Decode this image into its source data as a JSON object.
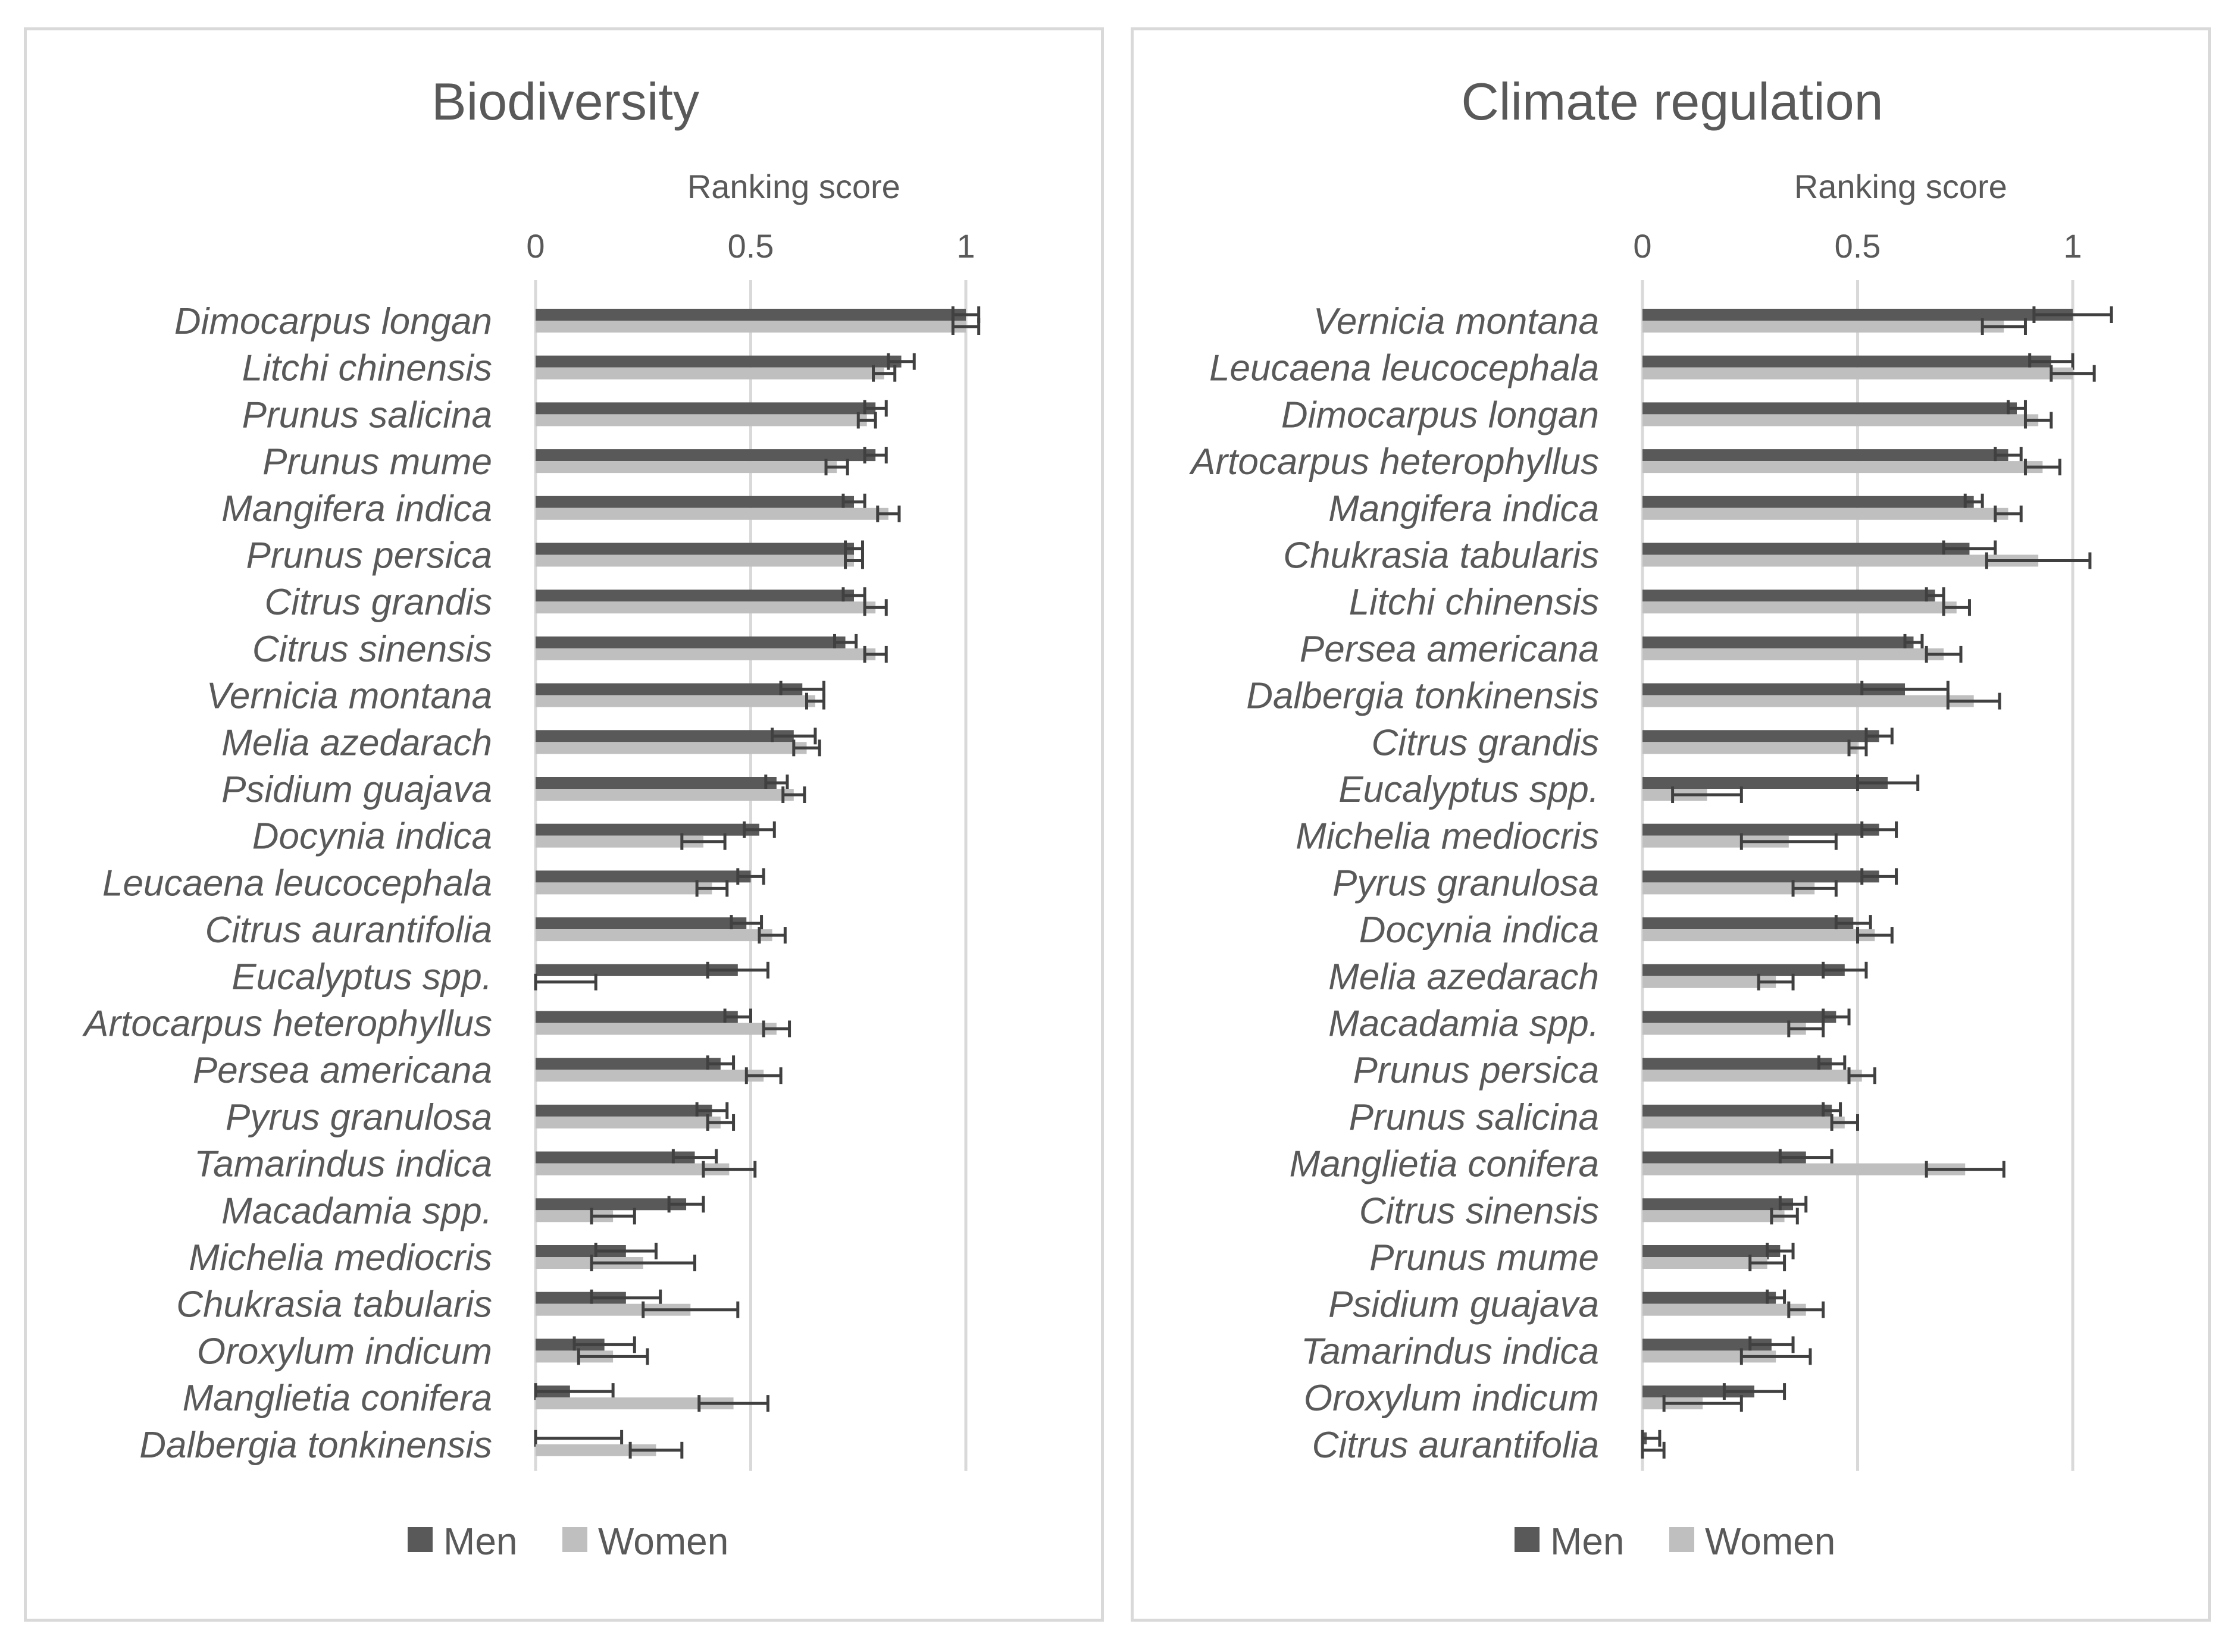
{
  "colors": {
    "men": "#595959",
    "women": "#bfbfbf",
    "err": "#404040",
    "grid": "#d9d9d9",
    "text": "#595959"
  },
  "chart_data": [
    {
      "type": "bar",
      "orientation": "horizontal",
      "title": "Biodiversity",
      "xlabel": "Ranking score",
      "xlim": [
        0,
        1.1
      ],
      "ticks": [
        0,
        0.5,
        1
      ],
      "tick_labels": [
        "0",
        "0.5",
        "1"
      ],
      "legend": "bottom",
      "categories": [
        "Dimocarpus longan",
        "Litchi chinensis",
        "Prunus salicina",
        "Prunus mume",
        "Mangifera indica",
        "Prunus persica",
        "Citrus grandis",
        "Citrus sinensis",
        "Vernicia montana",
        "Melia azedarach",
        "Psidium guajava",
        "Docynia indica",
        "Leucaena leucocephala",
        "Citrus aurantifolia",
        "Eucalyptus spp.",
        "Artocarpus heterophyllus",
        "Persea americana",
        "Pyrus granulosa",
        "Tamarindus indica",
        "Macadamia spp.",
        "Michelia mediocris",
        "Chukrasia tabularis",
        "Oroxylum indicum",
        "Manglietia conifera",
        "Dalbergia tonkinensis"
      ],
      "series": [
        {
          "name": "Men",
          "values": [
            1.0,
            0.85,
            0.79,
            0.79,
            0.74,
            0.74,
            0.74,
            0.72,
            0.62,
            0.6,
            0.56,
            0.52,
            0.5,
            0.49,
            0.47,
            0.47,
            0.43,
            0.41,
            0.37,
            0.35,
            0.21,
            0.21,
            0.16,
            0.08,
            0.0
          ],
          "errors": [
            0.03,
            0.03,
            0.025,
            0.025,
            0.025,
            0.02,
            0.025,
            0.025,
            0.05,
            0.05,
            0.025,
            0.035,
            0.03,
            0.035,
            0.07,
            0.03,
            0.03,
            0.035,
            0.05,
            0.04,
            0.07,
            0.08,
            0.07,
            0.1,
            0.2
          ]
        },
        {
          "name": "Women",
          "values": [
            1.0,
            0.81,
            0.77,
            0.7,
            0.82,
            0.74,
            0.79,
            0.79,
            0.65,
            0.63,
            0.6,
            0.39,
            0.41,
            0.55,
            0.0,
            0.56,
            0.53,
            0.43,
            0.45,
            0.18,
            0.25,
            0.36,
            0.18,
            0.46,
            0.28
          ],
          "errors": [
            0.03,
            0.025,
            0.02,
            0.025,
            0.025,
            0.02,
            0.025,
            0.025,
            0.02,
            0.03,
            0.025,
            0.05,
            0.035,
            0.03,
            0.14,
            0.03,
            0.04,
            0.03,
            0.06,
            0.05,
            0.12,
            0.11,
            0.08,
            0.08,
            0.06
          ]
        }
      ]
    },
    {
      "type": "bar",
      "orientation": "horizontal",
      "title": "Climate regulation",
      "xlabel": "Ranking score",
      "xlim": [
        0,
        1.1
      ],
      "ticks": [
        0,
        0.5,
        1
      ],
      "tick_labels": [
        "0",
        "0.5",
        "1"
      ],
      "legend": "bottom",
      "categories": [
        "Vernicia montana",
        "Leucaena leucocephala",
        "Dimocarpus longan",
        "Artocarpus heterophyllus",
        "Mangifera indica",
        "Chukrasia tabularis",
        "Litchi chinensis",
        "Persea americana",
        "Dalbergia tonkinensis",
        "Citrus grandis",
        "Eucalyptus spp.",
        "Michelia mediocris",
        "Pyrus granulosa",
        "Docynia indica",
        "Melia azedarach",
        "Macadamia spp.",
        "Prunus persica",
        "Prunus salicina",
        "Manglietia conifera",
        "Citrus sinensis",
        "Prunus mume",
        "Psidium guajava",
        "Tamarindus indica",
        "Oroxylum indicum",
        "Citrus aurantifolia"
      ],
      "series": [
        {
          "name": "Men",
          "values": [
            1.0,
            0.95,
            0.87,
            0.85,
            0.77,
            0.76,
            0.68,
            0.63,
            0.61,
            0.55,
            0.57,
            0.55,
            0.55,
            0.49,
            0.47,
            0.45,
            0.44,
            0.44,
            0.38,
            0.35,
            0.32,
            0.31,
            0.3,
            0.26,
            0.01
          ],
          "errors": [
            0.09,
            0.05,
            0.02,
            0.03,
            0.02,
            0.06,
            0.02,
            0.02,
            0.1,
            0.03,
            0.07,
            0.04,
            0.04,
            0.04,
            0.05,
            0.03,
            0.03,
            0.02,
            0.06,
            0.03,
            0.03,
            0.02,
            0.05,
            0.07,
            0.03
          ]
        },
        {
          "name": "Women",
          "values": [
            0.84,
            1.0,
            0.92,
            0.93,
            0.85,
            0.92,
            0.73,
            0.7,
            0.77,
            0.5,
            0.15,
            0.34,
            0.4,
            0.54,
            0.31,
            0.38,
            0.51,
            0.47,
            0.75,
            0.33,
            0.29,
            0.38,
            0.31,
            0.14,
            0.0
          ],
          "errors": [
            0.05,
            0.05,
            0.03,
            0.04,
            0.03,
            0.12,
            0.03,
            0.04,
            0.06,
            0.02,
            0.08,
            0.11,
            0.05,
            0.04,
            0.04,
            0.04,
            0.03,
            0.03,
            0.09,
            0.03,
            0.04,
            0.04,
            0.08,
            0.09,
            0.05
          ]
        }
      ]
    }
  ],
  "legend": {
    "men": "Men",
    "women": "Women"
  }
}
